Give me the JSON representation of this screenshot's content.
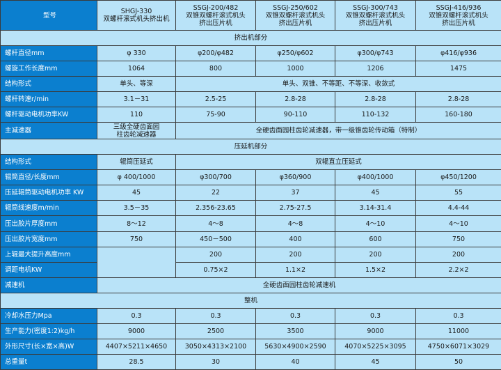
{
  "header": {
    "label": "型号",
    "models": [
      [
        "SHGJ-330",
        "双螺杆滚式机头挤出机"
      ],
      [
        "SSGJ-200/482",
        "双锥双螺杆滚式机头",
        "挤出压片机"
      ],
      [
        "SSGJ-250/602",
        "双锥双螺杆滚式机头",
        "挤出压片机"
      ],
      [
        "SSGJ-300/743",
        "双锥双螺杆滚式机头",
        "挤出压片机"
      ],
      [
        "SSGJ-416/936",
        "双锥双螺杆滚式机头",
        "挤出压片机"
      ]
    ]
  },
  "colors": {
    "label_bg": "#0b7fcf",
    "cell_bg": "#b9e3f8",
    "border": "#3a3a3a"
  },
  "rows": [
    {
      "section": "挤出机部分"
    },
    {
      "label": "螺杆直径mm",
      "cells": [
        "φ 330",
        "φ200/φ482",
        "φ250/φ602",
        "φ300/φ743",
        "φ416/φ936"
      ]
    },
    {
      "label": "螺旋工作长度mm",
      "cells": [
        "1064",
        "800",
        "1000",
        "1206",
        "1475"
      ]
    },
    {
      "label": "结构形式",
      "cells": [
        "单头、等深",
        {
          "text": "单头、双锥、不等距、不等深、收敛式",
          "span": 4
        }
      ]
    },
    {
      "label": "螺杆转速r/min",
      "cells": [
        "3.1－31",
        "2.5-25",
        "2.8-28",
        "2.8-28",
        "2.8-28"
      ]
    },
    {
      "label": "螺杆驱动电机功率KW",
      "cells": [
        "110",
        "75-90",
        "90-110",
        "110-132",
        "160-180"
      ]
    },
    {
      "label": "主减速器",
      "cells": [
        {
          "lines": [
            "三级全硬齿面园",
            "柱齿轮减速器"
          ]
        },
        {
          "text": "全硬齿面园柱齿轮减速器，带一级锥齿轮传动箱（特制）",
          "span": 4
        }
      ]
    },
    {
      "section": "压延机部分"
    },
    {
      "label": "结构形式",
      "cells": [
        "辊筒压延式",
        {
          "text": "双辊直立压延式",
          "span": 4
        }
      ]
    },
    {
      "label": "辊筒直径/长度mm",
      "cells": [
        "φ 400/1000",
        "φ300/700",
        "φ360/900",
        "φ400/1000",
        "φ450/1200"
      ]
    },
    {
      "label": "压延辊筒驱动电机功率 KW",
      "cells": [
        "45",
        "22",
        "37",
        "45",
        "55"
      ]
    },
    {
      "label": "辊筒线速度m/min",
      "cells": [
        "3.5－35",
        "2.356-23.65",
        "2.75-27.5",
        "3.14-31.4",
        "4.4-44"
      ]
    },
    {
      "label": "压出胶片厚度mm",
      "cells": [
        "8～12",
        "4～8",
        "4～8",
        "4～10",
        "4～10"
      ]
    },
    {
      "label": "压出胶片宽度mm",
      "cells": [
        "750",
        "450－500",
        "400",
        "600",
        "750"
      ]
    },
    {
      "label": "上辊最大提升高度mm",
      "cells": [
        {
          "text": "",
          "rowspan": 2
        },
        "200",
        "200",
        "200",
        "200"
      ]
    },
    {
      "label": "调距电机KW",
      "cells": [
        "0.75×2",
        "1.1×2",
        "1.5×2",
        "2.2×2"
      ]
    },
    {
      "label": "减速机",
      "cells": [
        {
          "text": "全硬齿面园柱齿轮减速机",
          "span": 5
        }
      ]
    },
    {
      "section": "整机"
    },
    {
      "label": "冷却水压力Mpa",
      "cells": [
        "0.3",
        "0.3",
        "0.3",
        "0.3",
        "0.3"
      ]
    },
    {
      "label": "生产能力(密度1:2)kg/h",
      "cells": [
        "9000",
        "2500",
        "3500",
        "9000",
        "11000"
      ]
    },
    {
      "label": "外形尺寸(长×宽×高)W",
      "cells": [
        "4407×5211×4650",
        "3050×4313×2100",
        "5630×4900×2590",
        "4070×5225×3095",
        "4750×6071×3029"
      ]
    },
    {
      "label": "总重量t",
      "cells": [
        "28.5",
        "30",
        "40",
        "45",
        "50"
      ]
    }
  ]
}
